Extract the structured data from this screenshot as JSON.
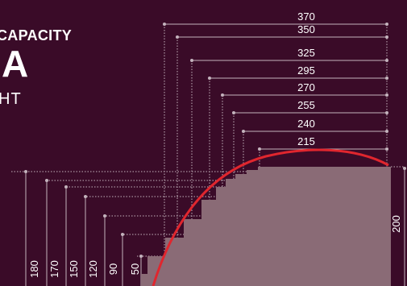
{
  "header": {
    "title": "CAPACITY",
    "letter": "A",
    "subtitle": "HT"
  },
  "colors": {
    "background": "#3a0b28",
    "seating": "#8a6b76",
    "arc": "#e0262e",
    "guide": "#c4b3bd",
    "text": "#ffffff"
  },
  "top_labels": [
    "370",
    "350",
    "325",
    "295",
    "270",
    "255",
    "240",
    "215"
  ],
  "bottom_labels": [
    "180",
    "170",
    "150",
    "120",
    "90",
    "50"
  ],
  "side_label": "200"
}
